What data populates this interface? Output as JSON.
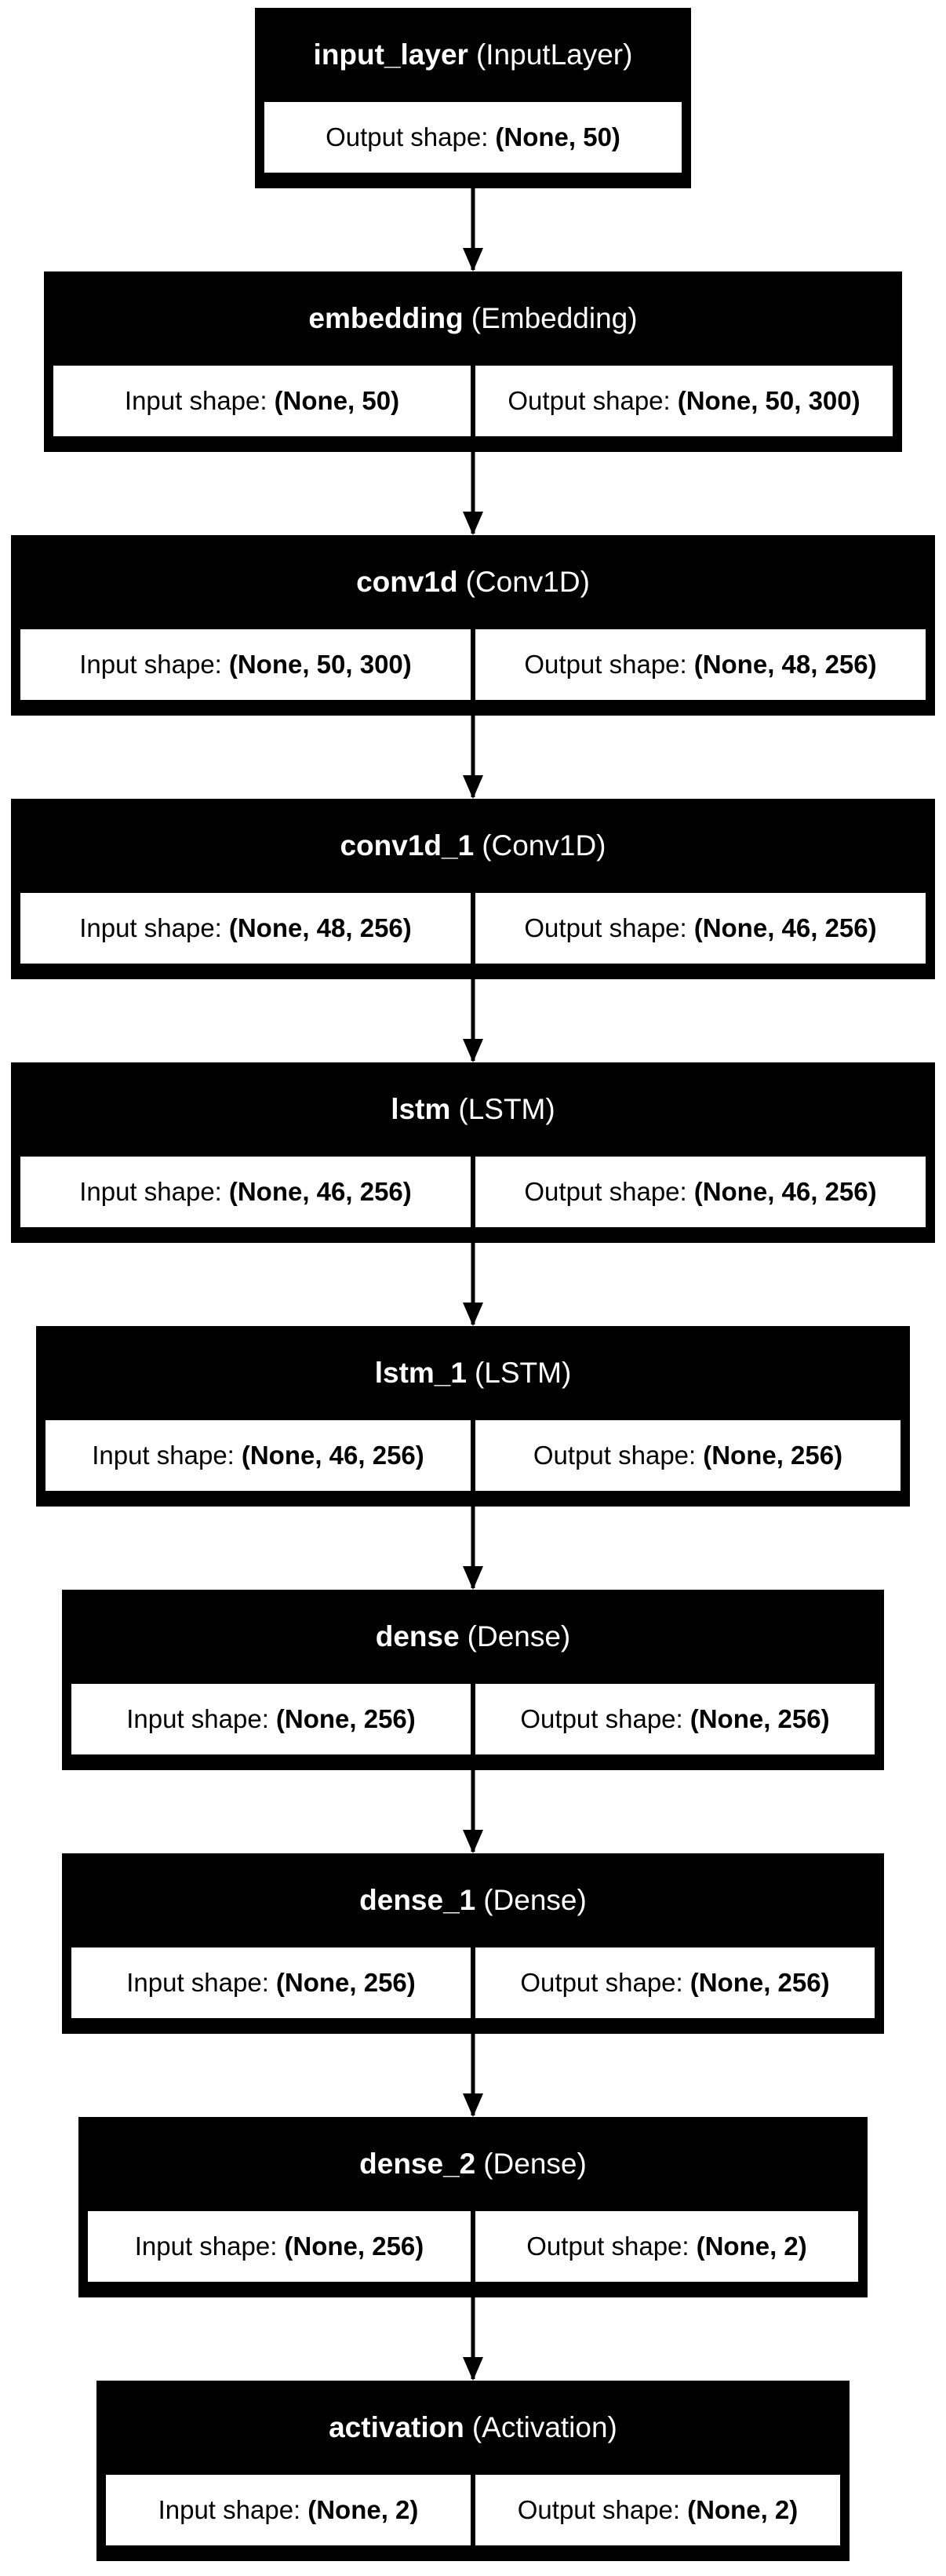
{
  "layers": [
    {
      "name": "input_layer",
      "type": "(InputLayer)",
      "input_label": "",
      "input_shape": "",
      "output_label": "Output shape:",
      "output_shape": "(None, 50)"
    },
    {
      "name": "embedding",
      "type": "(Embedding)",
      "input_label": "Input shape:",
      "input_shape": "(None, 50)",
      "output_label": "Output shape:",
      "output_shape": "(None, 50, 300)"
    },
    {
      "name": "conv1d",
      "type": "(Conv1D)",
      "input_label": "Input shape:",
      "input_shape": "(None, 50, 300)",
      "output_label": "Output shape:",
      "output_shape": "(None, 48, 256)"
    },
    {
      "name": "conv1d_1",
      "type": "(Conv1D)",
      "input_label": "Input shape:",
      "input_shape": "(None, 48, 256)",
      "output_label": "Output shape:",
      "output_shape": "(None, 46, 256)"
    },
    {
      "name": "lstm",
      "type": "(LSTM)",
      "input_label": "Input shape:",
      "input_shape": "(None, 46, 256)",
      "output_label": "Output shape:",
      "output_shape": "(None, 46, 256)"
    },
    {
      "name": "lstm_1",
      "type": "(LSTM)",
      "input_label": "Input shape:",
      "input_shape": "(None, 46, 256)",
      "output_label": "Output shape:",
      "output_shape": "(None, 256)"
    },
    {
      "name": "dense",
      "type": "(Dense)",
      "input_label": "Input shape:",
      "input_shape": "(None, 256)",
      "output_label": "Output shape:",
      "output_shape": "(None, 256)"
    },
    {
      "name": "dense_1",
      "type": "(Dense)",
      "input_label": "Input shape:",
      "input_shape": "(None, 256)",
      "output_label": "Output shape:",
      "output_shape": "(None, 256)"
    },
    {
      "name": "dense_2",
      "type": "(Dense)",
      "input_label": "Input shape:",
      "input_shape": "(None, 256)",
      "output_label": "Output shape:",
      "output_shape": "(None, 2)"
    },
    {
      "name": "activation",
      "type": "(Activation)",
      "input_label": "Input shape:",
      "input_shape": "(None, 2)",
      "output_label": "Output shape:",
      "output_shape": "(None, 2)"
    }
  ]
}
